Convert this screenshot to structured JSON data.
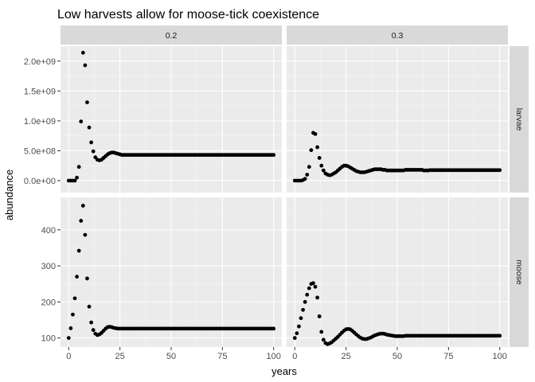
{
  "chart_data": {
    "type": "scatter",
    "title": "Low harvests allow for moose-tick coexistence",
    "xlabel": "years",
    "ylabel": "abundance",
    "xlim": [
      -4,
      104
    ],
    "x_ticks": [
      0,
      25,
      50,
      75,
      100
    ],
    "columns": [
      "0.2",
      "0.3"
    ],
    "rows": [
      {
        "name": "larvae",
        "ylim": [
          -200000000,
          2250000000
        ],
        "y_ticks": [
          0,
          500000000,
          1000000000,
          1500000000,
          2000000000
        ],
        "y_tick_labels": [
          "0.0e+00",
          "5.0e+08",
          "1.0e+09",
          "1.5e+09",
          "2.0e+09"
        ]
      },
      {
        "name": "moose",
        "ylim": [
          75,
          490
        ],
        "y_ticks": [
          100,
          200,
          300,
          400
        ],
        "y_tick_labels": [
          "100",
          "200",
          "300",
          "400"
        ]
      }
    ],
    "series": [
      {
        "name": "larvae",
        "column": "0.2",
        "row": "larvae",
        "x": [
          0,
          1,
          2,
          3,
          4,
          5,
          6,
          7,
          8,
          9,
          10,
          11,
          12,
          13,
          14,
          15,
          16,
          17,
          18,
          19,
          20,
          21,
          22,
          23,
          24,
          25,
          26,
          27,
          28,
          29,
          30,
          31,
          32,
          33,
          34,
          35
        ],
        "y": [
          0,
          0,
          0,
          0,
          50000000,
          230000000,
          990000000,
          2140000000,
          1930000000,
          1310000000,
          890000000,
          640000000,
          490000000,
          390000000,
          350000000,
          340000000,
          350000000,
          380000000,
          410000000,
          440000000,
          460000000,
          470000000,
          470000000,
          460000000,
          450000000,
          440000000,
          430000000,
          430000000,
          430000000,
          430000000,
          430000000,
          430000000,
          430000000,
          430000000,
          430000000,
          430000000
        ],
        "plateau": {
          "x_from": 36,
          "x_to": 100,
          "y": 430000000
        }
      },
      {
        "name": "larvae",
        "column": "0.3",
        "row": "larvae",
        "x": [
          0,
          1,
          2,
          3,
          4,
          5,
          6,
          7,
          8,
          9,
          10,
          11,
          12,
          13,
          14,
          15,
          16,
          17,
          18,
          19,
          20,
          21,
          22,
          23,
          24,
          25,
          26,
          27,
          28,
          29,
          30,
          31,
          32,
          33,
          34,
          35,
          36,
          37,
          38,
          39,
          40,
          41,
          42,
          43,
          44,
          45,
          46,
          47,
          48,
          49,
          50,
          51,
          52,
          53,
          54,
          55,
          56,
          57,
          58,
          59,
          60,
          61,
          62,
          63,
          64,
          65
        ],
        "y": [
          0,
          0,
          0,
          0,
          10000000,
          30000000,
          100000000,
          230000000,
          510000000,
          800000000,
          780000000,
          560000000,
          380000000,
          250000000,
          170000000,
          120000000,
          100000000,
          90000000,
          100000000,
          120000000,
          140000000,
          170000000,
          200000000,
          230000000,
          250000000,
          250000000,
          240000000,
          220000000,
          200000000,
          180000000,
          160000000,
          150000000,
          140000000,
          140000000,
          140000000,
          150000000,
          160000000,
          170000000,
          180000000,
          190000000,
          190000000,
          190000000,
          190000000,
          180000000,
          180000000,
          170000000,
          170000000,
          170000000,
          170000000,
          170000000,
          170000000,
          170000000,
          170000000,
          170000000,
          180000000,
          180000000,
          180000000,
          180000000,
          180000000,
          180000000,
          180000000,
          180000000,
          180000000,
          170000000,
          170000000,
          170000000
        ],
        "plateau": {
          "x_from": 66,
          "x_to": 100,
          "y": 175000000
        }
      },
      {
        "name": "moose",
        "column": "0.2",
        "row": "moose",
        "x": [
          0,
          1,
          2,
          3,
          4,
          5,
          6,
          7,
          8,
          9,
          10,
          11,
          12,
          13,
          14,
          15,
          16,
          17,
          18,
          19,
          20,
          21,
          22,
          23,
          24,
          25,
          26,
          27,
          28,
          29,
          30,
          31,
          32,
          33,
          34,
          35
        ],
        "y": [
          100,
          127,
          165,
          210,
          270,
          342,
          425,
          467,
          386,
          265,
          187,
          143,
          122,
          112,
          108,
          110,
          114,
          120,
          126,
          130,
          131,
          130,
          128,
          127,
          126,
          126,
          126,
          126,
          126,
          126,
          126,
          126,
          126,
          126,
          126,
          126
        ],
        "plateau": {
          "x_from": 36,
          "x_to": 100,
          "y": 126
        }
      },
      {
        "name": "moose",
        "column": "0.3",
        "row": "moose",
        "x": [
          0,
          1,
          2,
          3,
          4,
          5,
          6,
          7,
          8,
          9,
          10,
          11,
          12,
          13,
          14,
          15,
          16,
          17,
          18,
          19,
          20,
          21,
          22,
          23,
          24,
          25,
          26,
          27,
          28,
          29,
          30,
          31,
          32,
          33,
          34,
          35,
          36,
          37,
          38,
          39,
          40,
          41,
          42,
          43,
          44,
          45,
          46,
          47,
          48,
          49,
          50,
          51,
          52,
          53,
          54,
          55,
          56,
          57,
          58,
          59,
          60,
          61,
          62,
          63,
          64,
          65
        ],
        "y": [
          100,
          113,
          132,
          155,
          178,
          200,
          220,
          238,
          250,
          252,
          242,
          212,
          160,
          117,
          95,
          86,
          83,
          85,
          88,
          93,
          98,
          103,
          109,
          115,
          120,
          124,
          125,
          124,
          120,
          115,
          110,
          105,
          101,
          98,
          97,
          97,
          99,
          101,
          104,
          107,
          109,
          111,
          112,
          112,
          111,
          109,
          108,
          107,
          106,
          105,
          105,
          105,
          105,
          105,
          106,
          106,
          106,
          106,
          106,
          106,
          106,
          106,
          106,
          106,
          106,
          106
        ],
        "plateau": {
          "x_from": 66,
          "x_to": 100,
          "y": 106
        }
      }
    ],
    "grid": true,
    "legend": "none"
  }
}
